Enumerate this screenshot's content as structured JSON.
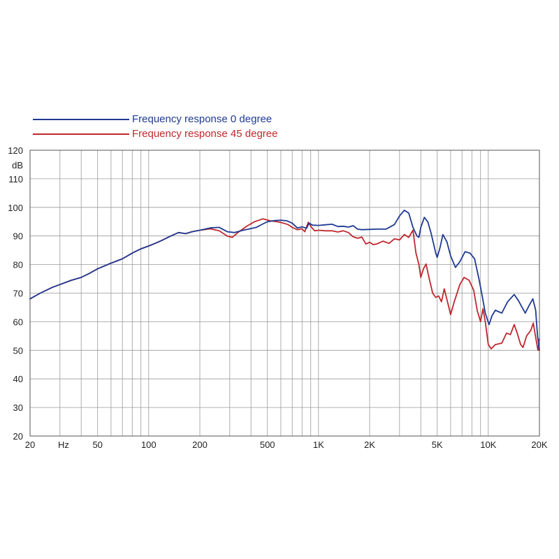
{
  "chart_data": {
    "type": "line",
    "xscale": "log",
    "xlim": [
      20,
      20000
    ],
    "ylim": [
      20,
      120
    ],
    "grid": true,
    "legend_position": "top-left",
    "ylabel": "dB",
    "xlabel": "Hz",
    "y_ticks": [
      20,
      30,
      40,
      50,
      60,
      70,
      80,
      90,
      100,
      110,
      120
    ],
    "x_tick_labels": [
      {
        "value": 20,
        "label": "20"
      },
      {
        "value": 50,
        "label": "50"
      },
      {
        "value": 100,
        "label": "100"
      },
      {
        "value": 200,
        "label": "200"
      },
      {
        "value": 500,
        "label": "500"
      },
      {
        "value": 1000,
        "label": "1K"
      },
      {
        "value": 2000,
        "label": "2K"
      },
      {
        "value": 5000,
        "label": "5K"
      },
      {
        "value": 10000,
        "label": "10K"
      },
      {
        "value": 20000,
        "label": "20K"
      }
    ],
    "x_gridlines": [
      20,
      30,
      40,
      50,
      60,
      70,
      80,
      90,
      100,
      200,
      300,
      400,
      500,
      600,
      700,
      800,
      900,
      1000,
      2000,
      3000,
      4000,
      5000,
      6000,
      7000,
      8000,
      9000,
      10000,
      20000
    ],
    "series": [
      {
        "name": "Frequency response 0 degree",
        "color": "#1f3a93",
        "points": [
          [
            20,
            68
          ],
          [
            23,
            70
          ],
          [
            27,
            72
          ],
          [
            30,
            73
          ],
          [
            35,
            74.5
          ],
          [
            40,
            75.5
          ],
          [
            45,
            77
          ],
          [
            50,
            78.5
          ],
          [
            60,
            80.5
          ],
          [
            70,
            82
          ],
          [
            80,
            84
          ],
          [
            90,
            85.5
          ],
          [
            100,
            86.5
          ],
          [
            110,
            87.5
          ],
          [
            120,
            88.5
          ],
          [
            135,
            90
          ],
          [
            150,
            91.2
          ],
          [
            165,
            90.8
          ],
          [
            180,
            91.5
          ],
          [
            200,
            92
          ],
          [
            230,
            92.8
          ],
          [
            260,
            93
          ],
          [
            290,
            91.5
          ],
          [
            320,
            91.2
          ],
          [
            360,
            92
          ],
          [
            400,
            92.6
          ],
          [
            430,
            93
          ],
          [
            470,
            94.2
          ],
          [
            500,
            95
          ],
          [
            550,
            95.4
          ],
          [
            600,
            95.5
          ],
          [
            650,
            95.3
          ],
          [
            700,
            94.5
          ],
          [
            750,
            92.8
          ],
          [
            800,
            93.2
          ],
          [
            850,
            92.7
          ],
          [
            880,
            94.5
          ],
          [
            920,
            93.8
          ],
          [
            1000,
            93.7
          ],
          [
            1100,
            93.9
          ],
          [
            1200,
            94.1
          ],
          [
            1300,
            93.3
          ],
          [
            1400,
            93.4
          ],
          [
            1500,
            93.1
          ],
          [
            1600,
            93.6
          ],
          [
            1700,
            92.4
          ],
          [
            1800,
            92.2
          ],
          [
            2000,
            92.3
          ],
          [
            2200,
            92.4
          ],
          [
            2500,
            92.4
          ],
          [
            2800,
            94
          ],
          [
            3000,
            97
          ],
          [
            3200,
            99
          ],
          [
            3400,
            98
          ],
          [
            3600,
            93
          ],
          [
            3800,
            90
          ],
          [
            3900,
            89.5
          ],
          [
            4000,
            93
          ],
          [
            4200,
            96.5
          ],
          [
            4400,
            95
          ],
          [
            4600,
            91
          ],
          [
            4900,
            84
          ],
          [
            5000,
            82.5
          ],
          [
            5200,
            86
          ],
          [
            5400,
            90.5
          ],
          [
            5700,
            88
          ],
          [
            6000,
            83
          ],
          [
            6400,
            79
          ],
          [
            6800,
            81
          ],
          [
            7300,
            84.5
          ],
          [
            7800,
            84
          ],
          [
            8300,
            82
          ],
          [
            8800,
            75
          ],
          [
            9200,
            69
          ],
          [
            9600,
            63
          ],
          [
            10100,
            59
          ],
          [
            10500,
            62
          ],
          [
            11000,
            64
          ],
          [
            12000,
            63
          ],
          [
            13000,
            67
          ],
          [
            14200,
            69.5
          ],
          [
            15000,
            67.5
          ],
          [
            16500,
            63
          ],
          [
            17500,
            66
          ],
          [
            18300,
            68
          ],
          [
            19000,
            64
          ],
          [
            19500,
            55
          ],
          [
            20000,
            50
          ]
        ]
      },
      {
        "name": "Frequency response 45 degree",
        "color": "#c0282d",
        "points": [
          [
            20,
            68
          ],
          [
            23,
            70
          ],
          [
            27,
            72
          ],
          [
            30,
            73
          ],
          [
            35,
            74.5
          ],
          [
            40,
            75.5
          ],
          [
            45,
            77
          ],
          [
            50,
            78.5
          ],
          [
            60,
            80.5
          ],
          [
            70,
            82
          ],
          [
            80,
            84
          ],
          [
            90,
            85.5
          ],
          [
            100,
            86.5
          ],
          [
            110,
            87.5
          ],
          [
            120,
            88.5
          ],
          [
            135,
            90
          ],
          [
            150,
            91.2
          ],
          [
            165,
            90.8
          ],
          [
            180,
            91.5
          ],
          [
            200,
            92
          ],
          [
            230,
            92.5
          ],
          [
            260,
            91.8
          ],
          [
            290,
            90
          ],
          [
            310,
            89.5
          ],
          [
            340,
            91.5
          ],
          [
            380,
            93.5
          ],
          [
            420,
            95
          ],
          [
            470,
            96
          ],
          [
            520,
            95.3
          ],
          [
            570,
            95
          ],
          [
            620,
            94.5
          ],
          [
            660,
            94
          ],
          [
            700,
            93
          ],
          [
            750,
            92.2
          ],
          [
            800,
            92.5
          ],
          [
            830,
            91.5
          ],
          [
            870,
            94.8
          ],
          [
            910,
            93
          ],
          [
            950,
            91.8
          ],
          [
            1000,
            92
          ],
          [
            1100,
            91.8
          ],
          [
            1200,
            91.8
          ],
          [
            1300,
            91.4
          ],
          [
            1400,
            91.8
          ],
          [
            1500,
            91.2
          ],
          [
            1600,
            89.7
          ],
          [
            1700,
            89.2
          ],
          [
            1800,
            89.6
          ],
          [
            1900,
            87.2
          ],
          [
            2000,
            87.8
          ],
          [
            2100,
            87
          ],
          [
            2200,
            87.2
          ],
          [
            2400,
            88.2
          ],
          [
            2600,
            87.4
          ],
          [
            2800,
            89
          ],
          [
            3000,
            88.6
          ],
          [
            3200,
            90.5
          ],
          [
            3400,
            89.5
          ],
          [
            3600,
            92
          ],
          [
            3750,
            84
          ],
          [
            3900,
            80
          ],
          [
            4000,
            75.5
          ],
          [
            4150,
            78.5
          ],
          [
            4300,
            80.2
          ],
          [
            4450,
            76
          ],
          [
            4700,
            70
          ],
          [
            4900,
            68.5
          ],
          [
            5100,
            69
          ],
          [
            5300,
            67
          ],
          [
            5500,
            71.5
          ],
          [
            5800,
            66
          ],
          [
            6000,
            62.5
          ],
          [
            6300,
            67
          ],
          [
            6800,
            73
          ],
          [
            7200,
            75.5
          ],
          [
            7700,
            74.5
          ],
          [
            8200,
            71
          ],
          [
            8600,
            64
          ],
          [
            9000,
            60
          ],
          [
            9300,
            64.5
          ],
          [
            9600,
            60
          ],
          [
            10000,
            52
          ],
          [
            10400,
            50.5
          ],
          [
            11000,
            52
          ],
          [
            12000,
            52.5
          ],
          [
            12800,
            56
          ],
          [
            13500,
            55.5
          ],
          [
            14200,
            59
          ],
          [
            14800,
            56
          ],
          [
            15500,
            52
          ],
          [
            16000,
            51
          ],
          [
            16800,
            55
          ],
          [
            17800,
            57
          ],
          [
            18400,
            59.5
          ],
          [
            19200,
            53
          ],
          [
            19600,
            50
          ],
          [
            20000,
            54
          ]
        ]
      }
    ]
  }
}
